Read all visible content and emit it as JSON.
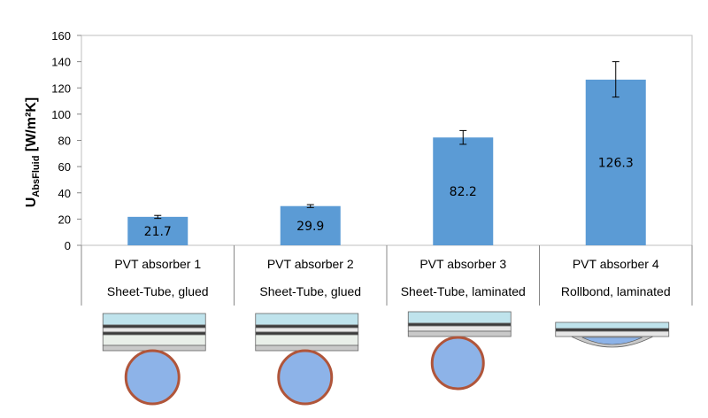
{
  "chart_data": {
    "type": "bar",
    "title": "",
    "xlabel": "",
    "ylabel": {
      "main": "U",
      "subscript": "AbsFluid",
      "unit": " [W/m²K]"
    },
    "ylim": [
      0,
      160
    ],
    "yticks": [
      0,
      20,
      40,
      60,
      80,
      100,
      120,
      140,
      160
    ],
    "grid": false,
    "legend": "none",
    "bar_color": "#5b9bd5",
    "categories": [
      {
        "name": "PVT absorber 1",
        "desc": "Sheet-Tube, glued"
      },
      {
        "name": "PVT absorber 2",
        "desc": "Sheet-Tube, glued"
      },
      {
        "name": "PVT absorber 3",
        "desc": "Sheet-Tube, laminated"
      },
      {
        "name": "PVT absorber 4",
        "desc": "Rollbond, laminated"
      }
    ],
    "values": [
      21.7,
      29.9,
      82.2,
      126.3
    ],
    "data_labels": [
      "21.7",
      "29.9",
      "82.2",
      "126.3"
    ],
    "error": [
      [
        20.5,
        22.8
      ],
      [
        28.8,
        31.0
      ],
      [
        77.0,
        87.5
      ],
      [
        113.0,
        140.0
      ]
    ],
    "cross_sections": [
      "sheet-tube-glued",
      "sheet-tube-glued",
      "sheet-tube-laminated",
      "rollbond-laminated"
    ]
  }
}
